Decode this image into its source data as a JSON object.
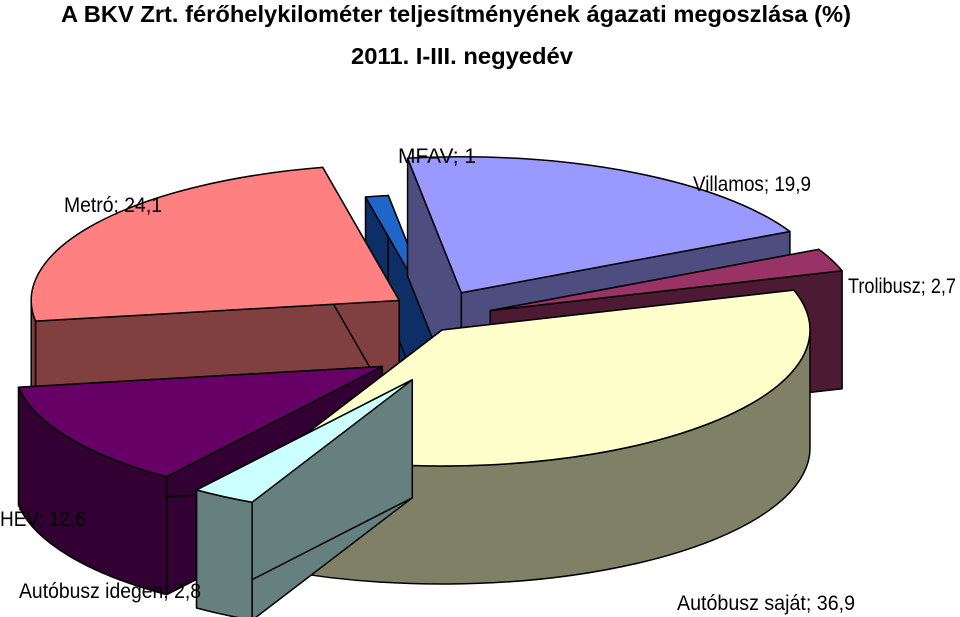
{
  "chart_data": {
    "type": "pie",
    "title": "A BKV Zrt. férőhelykilométer teljesítményének ágazati megoszlása (%)",
    "subtitle": "2011. I-III. negyedév",
    "three_d": true,
    "exploded": true,
    "legend": "none",
    "slices": [
      {
        "label": "MFAV; 1",
        "name": "MFAV",
        "value": 1.0,
        "color": "#1f66c8",
        "side_color": "#0e2f66"
      },
      {
        "label": "Villamos; 19,9",
        "name": "Villamos",
        "value": 19.9,
        "color": "#9999ff",
        "side_color": "#4d4d80"
      },
      {
        "label": "Trolibusz; 2,7",
        "name": "Trolibusz",
        "value": 2.7,
        "color": "#993366",
        "side_color": "#4d1a33"
      },
      {
        "label": "Autóbusz saját; 36,9",
        "name": "Autóbusz saját",
        "value": 36.9,
        "color": "#ffffcc",
        "side_color": "#808066"
      },
      {
        "label": "Autóbusz idegen; 2,8",
        "name": "Autóbusz idegen",
        "value": 2.8,
        "color": "#ccffff",
        "side_color": "#668080"
      },
      {
        "label": "HÉV; 12,6",
        "name": "HÉV",
        "value": 12.6,
        "color": "#660066",
        "side_color": "#330033"
      },
      {
        "label": "Metró; 24,1",
        "name": "Metró",
        "value": 24.1,
        "color": "#ff8080",
        "side_color": "#804040"
      }
    ]
  }
}
